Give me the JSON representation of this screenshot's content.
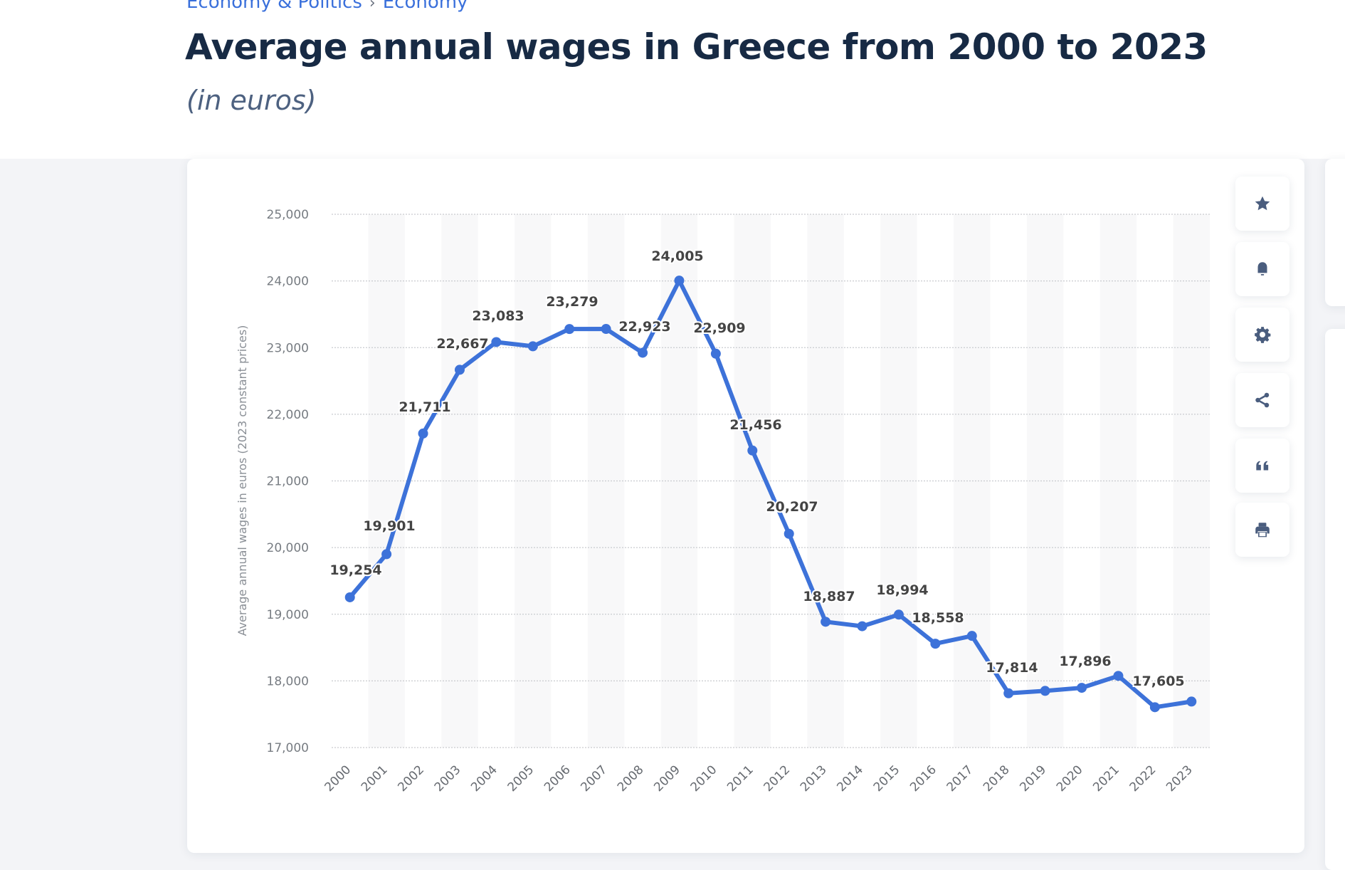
{
  "breadcrumb": {
    "items": [
      "Economy & Politics",
      "Economy"
    ],
    "separator": "›"
  },
  "header": {
    "title": "Average annual wages in Greece from 2000 to 2023",
    "subtitle": "(in euros)"
  },
  "toolbar": {
    "buttons": [
      {
        "name": "favorite",
        "icon": "star-icon"
      },
      {
        "name": "notify",
        "icon": "bell-icon"
      },
      {
        "name": "settings",
        "icon": "gear-icon"
      },
      {
        "name": "share",
        "icon": "share-icon"
      },
      {
        "name": "cite",
        "icon": "quote-icon"
      },
      {
        "name": "print",
        "icon": "printer-icon"
      }
    ],
    "icon_color": "#4a5d7e"
  },
  "colors": {
    "line": "#3d72d9",
    "accent": "#3a70db",
    "title": "#172a44",
    "subtitle": "#4d6180"
  },
  "chart_data": {
    "type": "line",
    "title": "Average annual wages in Greece from 2000 to 2023",
    "subtitle": "(in euros)",
    "xlabel": "",
    "ylabel": "Average annual wages in euros (2023 constant prices)",
    "ylim": [
      17000,
      25000
    ],
    "yticks": [
      17000,
      18000,
      19000,
      20000,
      21000,
      22000,
      23000,
      24000,
      25000
    ],
    "ytick_labels": [
      "17,000",
      "18,000",
      "19,000",
      "20,000",
      "21,000",
      "22,000",
      "23,000",
      "24,000",
      "25,000"
    ],
    "grid": true,
    "legend": "none",
    "categories": [
      "2000",
      "2001",
      "2002",
      "2003",
      "2004",
      "2005",
      "2006",
      "2007",
      "2008",
      "2009",
      "2010",
      "2011",
      "2012",
      "2013",
      "2014",
      "2015",
      "2016",
      "2017",
      "2018",
      "2019",
      "2020",
      "2021",
      "2022",
      "2023"
    ],
    "series": [
      {
        "name": "Average annual wages",
        "values": [
          19254,
          19901,
          21711,
          22667,
          23083,
          23020,
          23279,
          23280,
          22923,
          24005,
          22909,
          21456,
          20207,
          18887,
          18820,
          18994,
          18558,
          18675,
          17814,
          17850,
          17896,
          18075,
          17605,
          17690
        ],
        "labels": [
          "19,254",
          "19,901",
          "21,711",
          "22,667",
          "23,083",
          null,
          "23,279",
          null,
          "22,923",
          "24,005",
          "22,909",
          "21,456",
          "20,207",
          "18,887",
          null,
          "18,994",
          "18,558",
          null,
          "17,814",
          null,
          "17,896",
          null,
          "17,605",
          null
        ]
      }
    ]
  }
}
